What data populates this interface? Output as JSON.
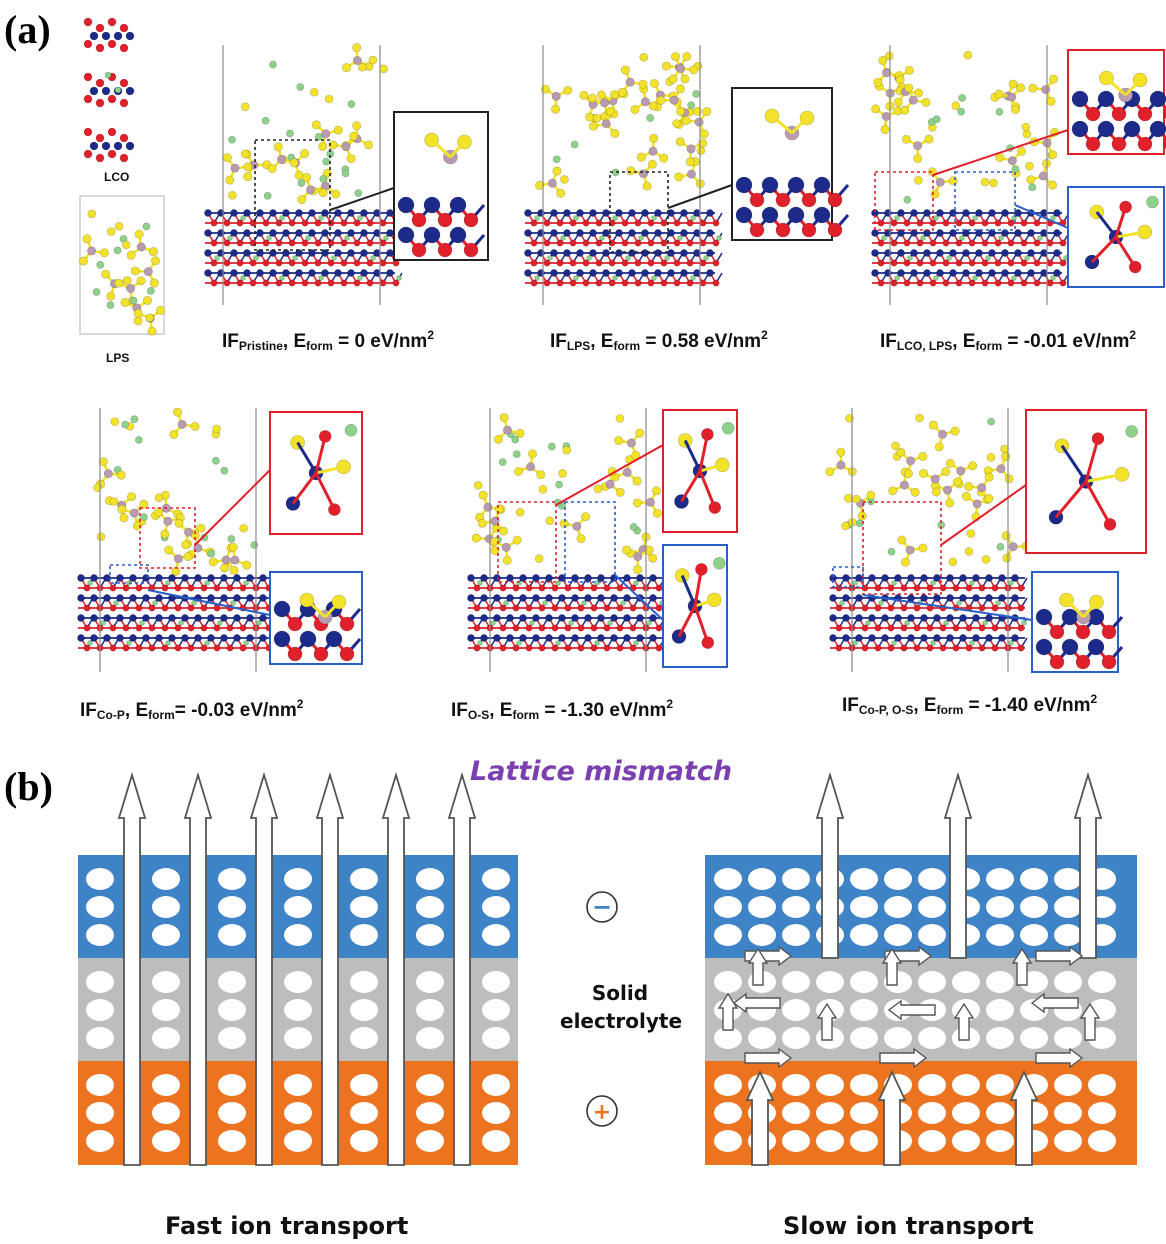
{
  "panel_a": {
    "label": "(a)",
    "bulk": {
      "lco": "LCO",
      "lps": "LPS"
    },
    "captions": [
      {
        "prefix": "IF",
        "sub": "Pristine",
        "mid": ", E",
        "sub2": "form",
        "value": " = 0 eV/nm",
        "sup": "2"
      },
      {
        "prefix": "IF",
        "sub": "LPS",
        "mid": ", E",
        "sub2": "form",
        "value": " = 0.58 eV/nm",
        "sup": "2"
      },
      {
        "prefix": "IF",
        "sub": "LCO, LPS",
        "mid": ", E",
        "sub2": "form",
        "value": " = -0.01 eV/nm",
        "sup": "2"
      },
      {
        "prefix": "IF",
        "sub": "Co-P",
        "mid": ", E",
        "sub2": "form",
        "value": "= -0.03 eV/nm",
        "sup": "2"
      },
      {
        "prefix": "IF",
        "sub": "O-S",
        "mid": ", E",
        "sub2": "form",
        "value": " = -1.30 eV/nm",
        "sup": "2"
      },
      {
        "prefix": "IF",
        "sub": "Co-P, O-S",
        "mid": ", E",
        "sub2": "form",
        "value": " = -1.40 eV/nm",
        "sup": "2"
      }
    ]
  },
  "panel_b": {
    "label": "(b)",
    "title": "Lattice mismatch",
    "middle_label_line1": "Solid",
    "middle_label_line2": "electrolyte",
    "minus_symbol": "−",
    "plus_symbol": "+",
    "left_caption": "Fast ion transport",
    "right_caption": "Slow ion transport"
  },
  "colors": {
    "anode": "#3f83c7",
    "electrolyte": "#bdbdbd",
    "cathode": "#ec7421",
    "oxygen": "#e0202a",
    "cobalt": "#1c2a8a",
    "sulfur": "#f2e22a",
    "lithium": "#8dd18a",
    "phosphorus": "#b89bb0",
    "title": "#7b3fb0",
    "red_box": "#e0202a",
    "blue_box": "#2a5fc8"
  }
}
